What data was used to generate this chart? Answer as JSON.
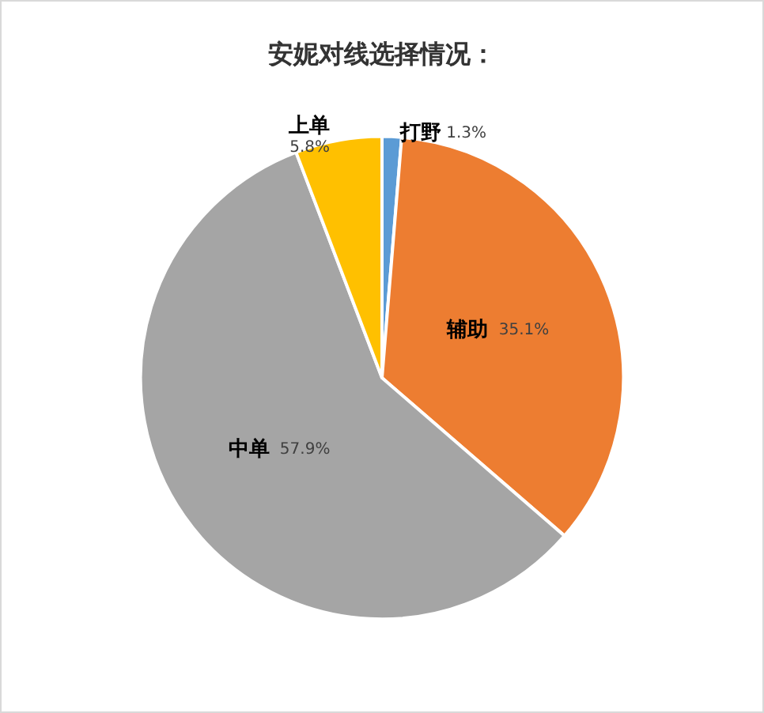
{
  "chart_data": {
    "type": "pie",
    "title": "安妮对线选择情况：",
    "categories": [
      "打野",
      "辅助",
      "中单",
      "上单"
    ],
    "values": [
      1.3,
      35.1,
      57.9,
      5.8
    ],
    "value_labels": [
      "1.3%",
      "35.1%",
      "57.9%",
      "5.8%"
    ],
    "colors": [
      "#5b9bd5",
      "#ed7d31",
      "#a5a5a5",
      "#ffc000"
    ],
    "legend": false
  }
}
